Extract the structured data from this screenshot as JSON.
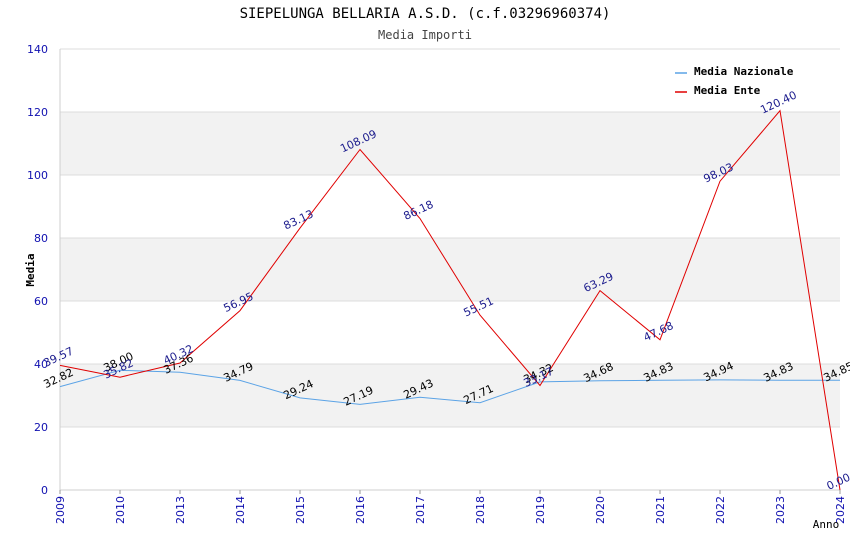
{
  "chart_data": {
    "type": "line",
    "title": "SIEPELUNGA BELLARIA A.S.D. (c.f.03296960374)",
    "subtitle": "Media Importi",
    "xlabel": "Anno",
    "ylabel": "Media",
    "ylim": [
      0,
      140
    ],
    "yticks": [
      "0",
      "20",
      "40",
      "60",
      "80",
      "100",
      "120",
      "140"
    ],
    "categories": [
      "2009",
      "2010",
      "2013",
      "2014",
      "2015",
      "2016",
      "2017",
      "2018",
      "2019",
      "2020",
      "2021",
      "2022",
      "2023",
      "2024"
    ],
    "legend_position": "top-right",
    "grid": true,
    "series": [
      {
        "name": "Media Nazionale",
        "color": "#5ba3e6",
        "label_color": "#000000",
        "values": [
          32.82,
          38.0,
          37.36,
          34.79,
          29.24,
          27.19,
          29.43,
          27.71,
          34.32,
          34.68,
          34.83,
          34.94,
          34.83,
          34.85
        ],
        "labels": [
          "32.82",
          "38.00",
          "37.36",
          "34.79",
          "29.24",
          "27.19",
          "29.43",
          "27.71",
          "34.32",
          "34.68",
          "34.83",
          "34.94",
          "34.83",
          "34.85"
        ]
      },
      {
        "name": "Media Ente",
        "color": "#e00000",
        "label_color": "#1a1a8c",
        "values": [
          39.57,
          35.82,
          40.32,
          56.95,
          83.13,
          108.09,
          86.18,
          55.51,
          33.17,
          63.29,
          47.68,
          98.03,
          120.4,
          0.0
        ],
        "labels": [
          "39.57",
          "35.82",
          "40.32",
          "56.95",
          "83.13",
          "108.09",
          "86.18",
          "55.51",
          "33.17",
          "63.29",
          "47.68",
          "98.03",
          "120.40",
          "0.00"
        ]
      }
    ]
  },
  "colors": {
    "axis_tick_label": "#1010b0",
    "band": "#f2f2f2",
    "gridline": "#dcdcdc"
  }
}
